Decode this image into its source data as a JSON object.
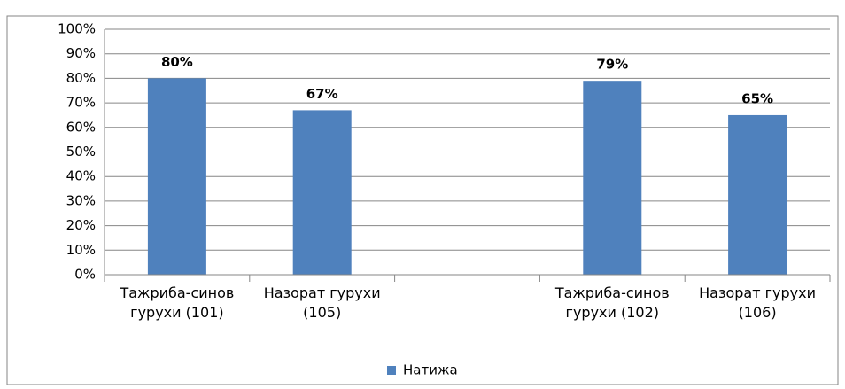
{
  "chart_data": {
    "type": "bar",
    "categories": [
      "Тажриба-синов гурухи (101)",
      "Назорат гурухи (105)",
      null,
      "Тажриба-синов гурухи (102)",
      "Назорат гурухи (106)"
    ],
    "series": [
      {
        "name": "Натижа",
        "color": "#4f81bd",
        "values": [
          80,
          67,
          null,
          79,
          65
        ],
        "value_labels": [
          "80%",
          "67%",
          null,
          "79%",
          "65%"
        ]
      }
    ],
    "ylim": [
      0,
      100
    ],
    "yticks": [
      {
        "value": 0,
        "label": "0%"
      },
      {
        "value": 10,
        "label": "10%"
      },
      {
        "value": 20,
        "label": "20%"
      },
      {
        "value": 30,
        "label": "30%"
      },
      {
        "value": 40,
        "label": "40%"
      },
      {
        "value": 50,
        "label": "50%"
      },
      {
        "value": 60,
        "label": "60%"
      },
      {
        "value": 70,
        "label": "70%"
      },
      {
        "value": 80,
        "label": "80%"
      },
      {
        "value": 90,
        "label": "90%"
      },
      {
        "value": 100,
        "label": "100%"
      }
    ],
    "grid": true,
    "legend": "bottom"
  }
}
